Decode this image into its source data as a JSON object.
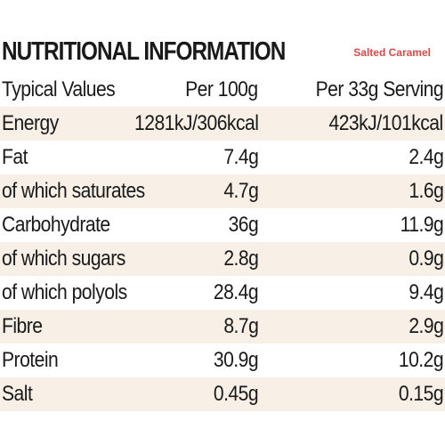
{
  "title": "NUTRITIONAL INFORMATION",
  "flavour": "Salted Caramel",
  "colors": {
    "flavour_text": "#d94848",
    "shaded_row": "#f8efe6",
    "text": "#1a1a1a"
  },
  "headers": {
    "label": "Typical Values",
    "per_100g": "Per 100g",
    "per_serving": "Per 33g Serving"
  },
  "rows": [
    {
      "label": "Energy",
      "per_100g": "1281kJ/306kcal",
      "per_serving": "423kJ/101kcal"
    },
    {
      "label": "Fat",
      "per_100g": "7.4g",
      "per_serving": "2.4g"
    },
    {
      "label": "of which saturates",
      "per_100g": "4.7g",
      "per_serving": "1.6g"
    },
    {
      "label": "Carbohydrate",
      "per_100g": "36g",
      "per_serving": "11.9g"
    },
    {
      "label": "of which sugars",
      "per_100g": "2.8g",
      "per_serving": "0.9g"
    },
    {
      "label": "of which polyols",
      "per_100g": "28.4g",
      "per_serving": "9.4g"
    },
    {
      "label": "Fibre",
      "per_100g": "8.7g",
      "per_serving": "2.9g"
    },
    {
      "label": "Protein",
      "per_100g": "30.9g",
      "per_serving": "10.2g"
    },
    {
      "label": "Salt",
      "per_100g": "0.45g",
      "per_serving": "0.15g"
    }
  ]
}
